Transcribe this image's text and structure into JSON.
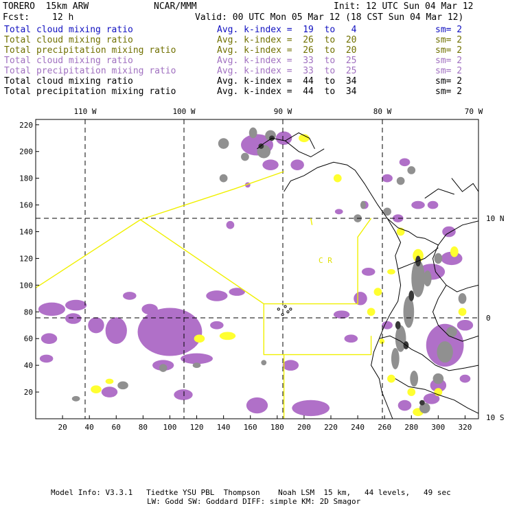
{
  "header": {
    "model": "TORERO  15km ARW",
    "org": "NCAR/MMM",
    "init": "Init: 12 UTC Sun 04 Mar 12",
    "fcst_label": "Fcst:",
    "fcst_value": "12 h",
    "valid": "Valid: 00 UTC Mon 05 Mar 12 (18 CST Sun 04 Mar 12)"
  },
  "legend": [
    {
      "field": "Total cloud mixing ratio",
      "index": "Avg. k-index =  19  to   4",
      "sm": "sm= 2",
      "color": "#1010c0"
    },
    {
      "field": "Total cloud mixing ratio",
      "index": "Avg. k-index =  26  to  20",
      "sm": "sm= 2",
      "color": "#707000"
    },
    {
      "field": "Total precipitation mixing ratio",
      "index": "Avg. k-index =  26  to  20",
      "sm": "sm= 2",
      "color": "#707000"
    },
    {
      "field": "Total cloud mixing ratio",
      "index": "Avg. k-index =  33  to  25",
      "sm": "sm= 2",
      "color": "#a070c0"
    },
    {
      "field": "Total precipitation mixing ratio",
      "index": "Avg. k-index =  33  to  25",
      "sm": "sm= 2",
      "color": "#a070c0"
    },
    {
      "field": "Total cloud mixing ratio",
      "index": "Avg. k-index =  44  to  34",
      "sm": "sm= 2",
      "color": "#000000"
    },
    {
      "field": "Total precipitation mixing ratio",
      "index": "Avg. k-index =  44  to  34",
      "sm": "sm= 2",
      "color": "#000000"
    }
  ],
  "map": {
    "lon_labels": [
      "110 W",
      "100 W",
      "90 W",
      "80 W",
      "70 W"
    ],
    "lat_labels": [
      "10 N",
      "0",
      "10 S"
    ],
    "y_ticks": [
      "220",
      "200",
      "180",
      "160",
      "140",
      "120",
      "100",
      "80",
      "60",
      "40",
      "20"
    ],
    "x_ticks": [
      "20",
      "40",
      "60",
      "80",
      "100",
      "120",
      "140",
      "160",
      "180",
      "200",
      "220",
      "240",
      "260",
      "280",
      "300",
      "320"
    ],
    "region_label": "C R",
    "colors": {
      "purple": "#b070c8",
      "yellow": "#ffff30",
      "outline": "#f0f000",
      "gray": "#909090",
      "dark": "#383838",
      "coast": "#000000"
    }
  },
  "footer": {
    "line1": "Model Info: V3.3.1   Tiedtke YSU PBL  Thompson    Noah LSM  15 km,   44 levels,   49 sec",
    "line2": "LW: Godd SW: Goddard DIFF: simple KM: 2D Smagor"
  }
}
